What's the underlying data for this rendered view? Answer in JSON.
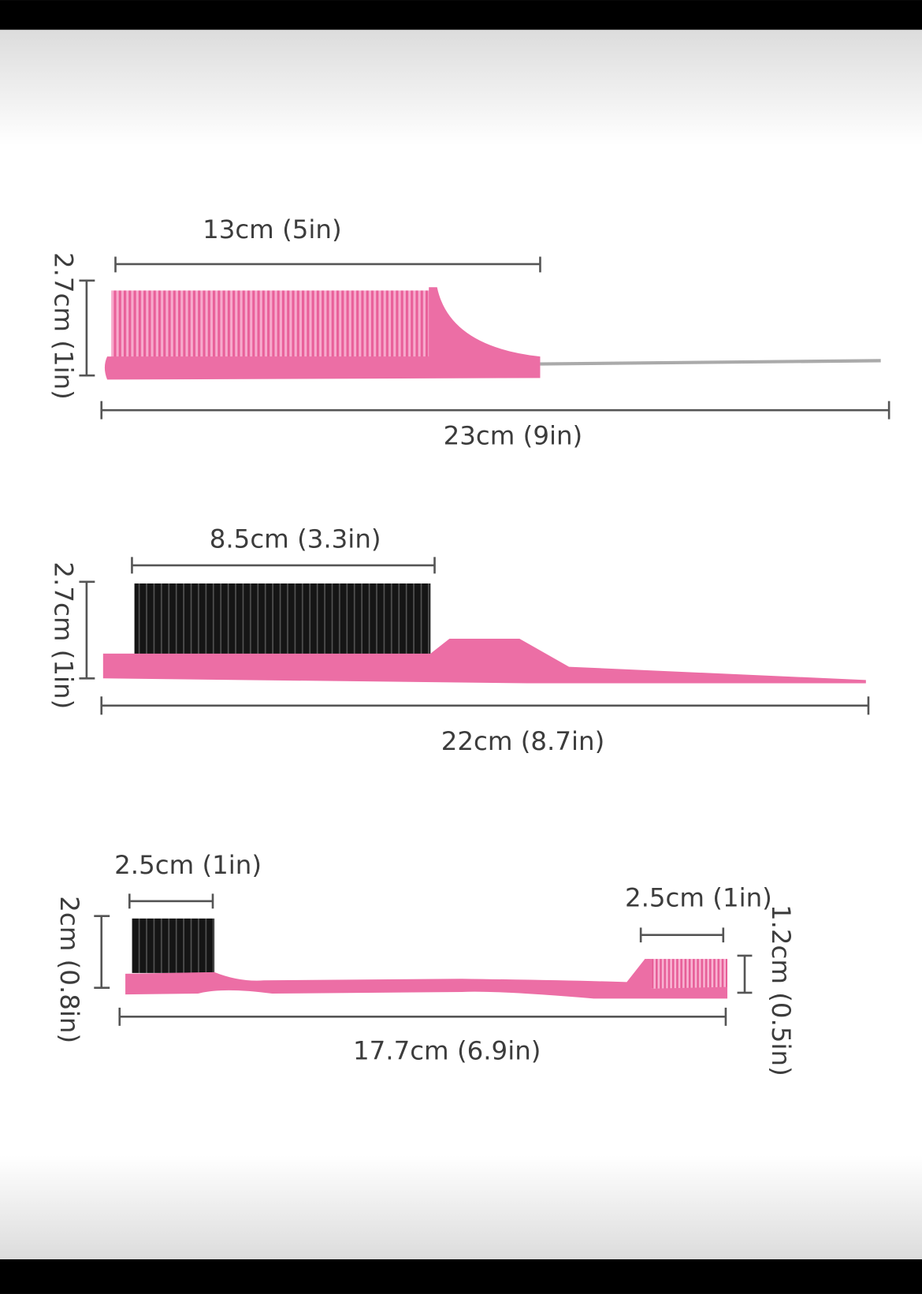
{
  "items": [
    {
      "head_width": "13cm (5in)",
      "height": "2.7cm (1in)",
      "length": "23cm (9in)"
    },
    {
      "head_width": "8.5cm (3.3in)",
      "height": "2.7cm (1in)",
      "length": "22cm (8.7in)"
    },
    {
      "head_width": "2.5cm (1in)",
      "height": "2cm (0.8in)",
      "length": "17.7cm (6.9in)",
      "comb_width": "2.5cm (1in)",
      "comb_height": "1.2cm (0.5in)"
    }
  ]
}
